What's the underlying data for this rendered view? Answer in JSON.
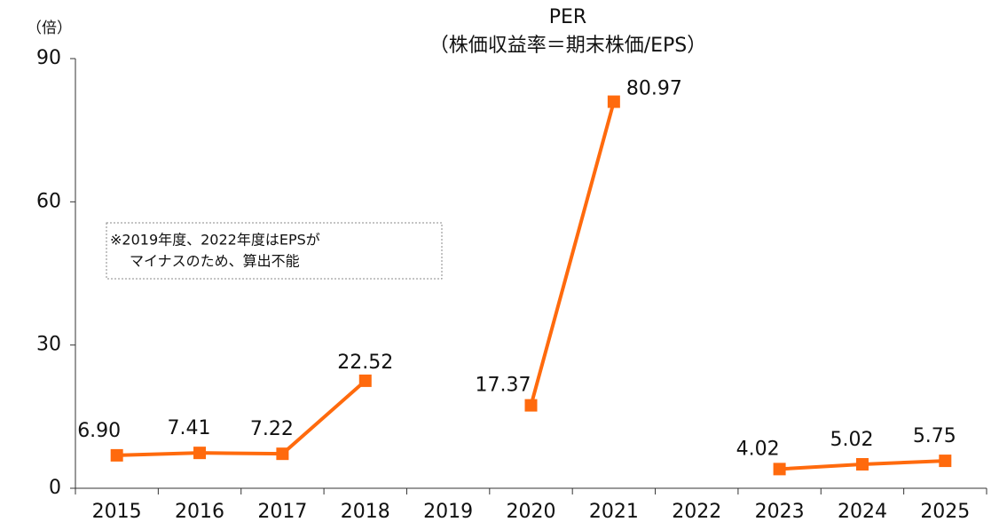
{
  "chart_data": {
    "type": "line",
    "title": "PER",
    "subtitle": "（株価収益率＝期末株価/EPS）",
    "y_label": "（倍）",
    "annotation": [
      "※2019年度、2022年度はEPSが",
      "マイナスのため、算出不能"
    ],
    "categories": [
      "2015",
      "2016",
      "2017",
      "2018",
      "2019",
      "2020",
      "2021",
      "2022",
      "2023",
      "2024",
      "2025"
    ],
    "series": [
      {
        "name": "PER",
        "color": "#ff6a0d",
        "values": [
          6.9,
          7.41,
          7.22,
          22.52,
          null,
          17.37,
          80.97,
          null,
          4.02,
          5.02,
          5.75
        ],
        "value_labels": [
          "6.90",
          "7.41",
          "7.22",
          "22.52",
          null,
          "17.37",
          "80.97",
          null,
          "4.02",
          "5.02",
          "5.75"
        ]
      }
    ],
    "ylim": [
      0,
      90
    ],
    "yticks": [
      0,
      30,
      60,
      90
    ],
    "grid": false
  }
}
